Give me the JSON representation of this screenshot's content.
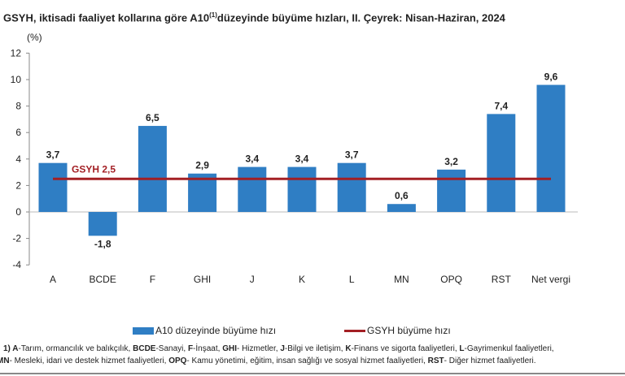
{
  "chart_data": {
    "type": "bar",
    "title": "GSYH, iktisadi faaliyet kollarına göre A10",
    "title_sup": "(1)",
    "title_rest": "düzeyinde büyüme hızları, II. Çeyrek: Nisan-Haziran, 2024",
    "ylabel": "(%)",
    "ylim": [
      -4,
      12
    ],
    "yticks": [
      -4,
      -2,
      0,
      2,
      4,
      6,
      8,
      10,
      12
    ],
    "categories": [
      "A",
      "BCDE",
      "F",
      "GHI",
      "J",
      "K",
      "L",
      "MN",
      "OPQ",
      "RST",
      "Net vergi"
    ],
    "series": [
      {
        "name": "A10 düzeyinde büyüme hızı",
        "type": "bar",
        "color": "#2f7ec4",
        "values": [
          3.7,
          -1.8,
          6.5,
          2.9,
          3.4,
          3.4,
          3.7,
          0.6,
          3.2,
          7.4,
          9.6
        ],
        "labels": [
          "3,7",
          "-1,8",
          "6,5",
          "2,9",
          "3,4",
          "3,4",
          "3,7",
          "0,6",
          "3,2",
          "7,4",
          "9,6"
        ]
      },
      {
        "name": "GSYH büyüme hızı",
        "type": "line",
        "color": "#a31f24",
        "value": 2.5,
        "label": "GSYH 2,5"
      }
    ],
    "grid": false,
    "legend": "bottom"
  },
  "footnote": [
    [
      {
        "b": true,
        "t": "1) A"
      },
      {
        "t": "-Tarım, ormancılık ve balıkçılık, "
      },
      {
        "b": true,
        "t": "BCDE"
      },
      {
        "t": "-Sanayi, "
      },
      {
        "b": true,
        "t": "F"
      },
      {
        "t": "-İnşaat, "
      },
      {
        "b": true,
        "t": "GHI"
      },
      {
        "t": "- Hizmetler, "
      },
      {
        "b": true,
        "t": "J"
      },
      {
        "t": "-Bilgi ve iletişim, "
      },
      {
        "b": true,
        "t": "K"
      },
      {
        "t": "-Finans ve sigorta faaliyetleri, "
      },
      {
        "b": true,
        "t": "L"
      },
      {
        "t": "-Gayrimenkul faaliyetleri,"
      }
    ],
    [
      {
        "b": true,
        "t": "MN"
      },
      {
        "t": "- Mesleki, idari ve destek hizmet faaliyetleri, "
      },
      {
        "b": true,
        "t": "OPQ"
      },
      {
        "t": "- Kamu yönetimi, eğitim, insan sağlığı ve sosyal hizmet faaliyetleri, "
      },
      {
        "b": true,
        "t": "RST"
      },
      {
        "t": "- Diğer hizmet faaliyetleri."
      }
    ]
  ]
}
